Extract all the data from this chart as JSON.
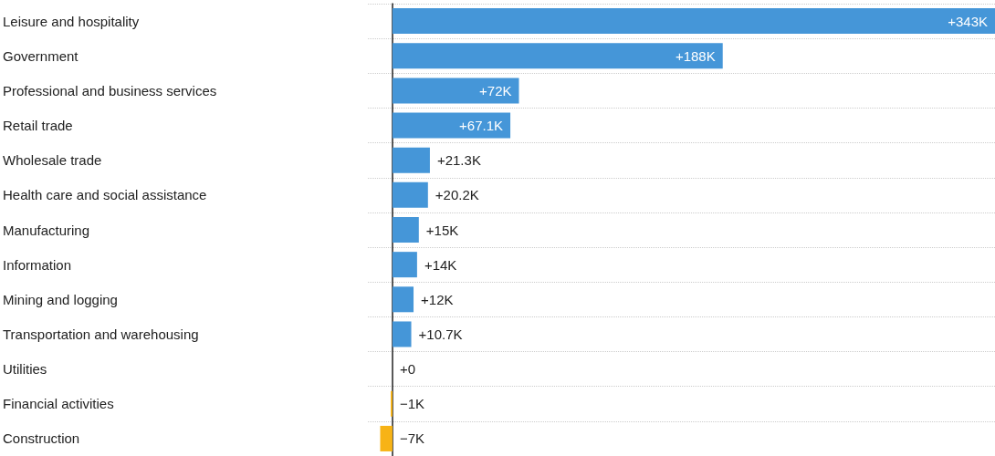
{
  "chart_data": {
    "type": "bar",
    "orientation": "horizontal",
    "grid": "y",
    "categories": [
      "Leisure and hospitality",
      "Government",
      "Professional and business services",
      "Retail trade",
      "Wholesale trade",
      "Health care and social assistance",
      "Manufacturing",
      "Information",
      "Mining and logging",
      "Transportation and warehousing",
      "Utilities",
      "Financial activities",
      "Construction"
    ],
    "values": [
      343,
      188,
      72,
      67.1,
      21.3,
      20.2,
      15,
      14,
      12,
      10.7,
      0,
      -1,
      -7
    ],
    "value_labels": [
      "+343K",
      "+188K",
      "+72K",
      "+67.1K",
      "+21.3K",
      "+20.2K",
      "+15K",
      "+14K",
      "+12K",
      "+10.7K",
      "+0",
      "−1K",
      "−7K"
    ],
    "colors": [
      "#4596d8",
      "#4596d8",
      "#4596d8",
      "#4596d8",
      "#4596d8",
      "#4596d8",
      "#4596d8",
      "#4596d8",
      "#4596d8",
      "#4596d8",
      "#4596d8",
      "#f7b316",
      "#f7b316"
    ]
  }
}
